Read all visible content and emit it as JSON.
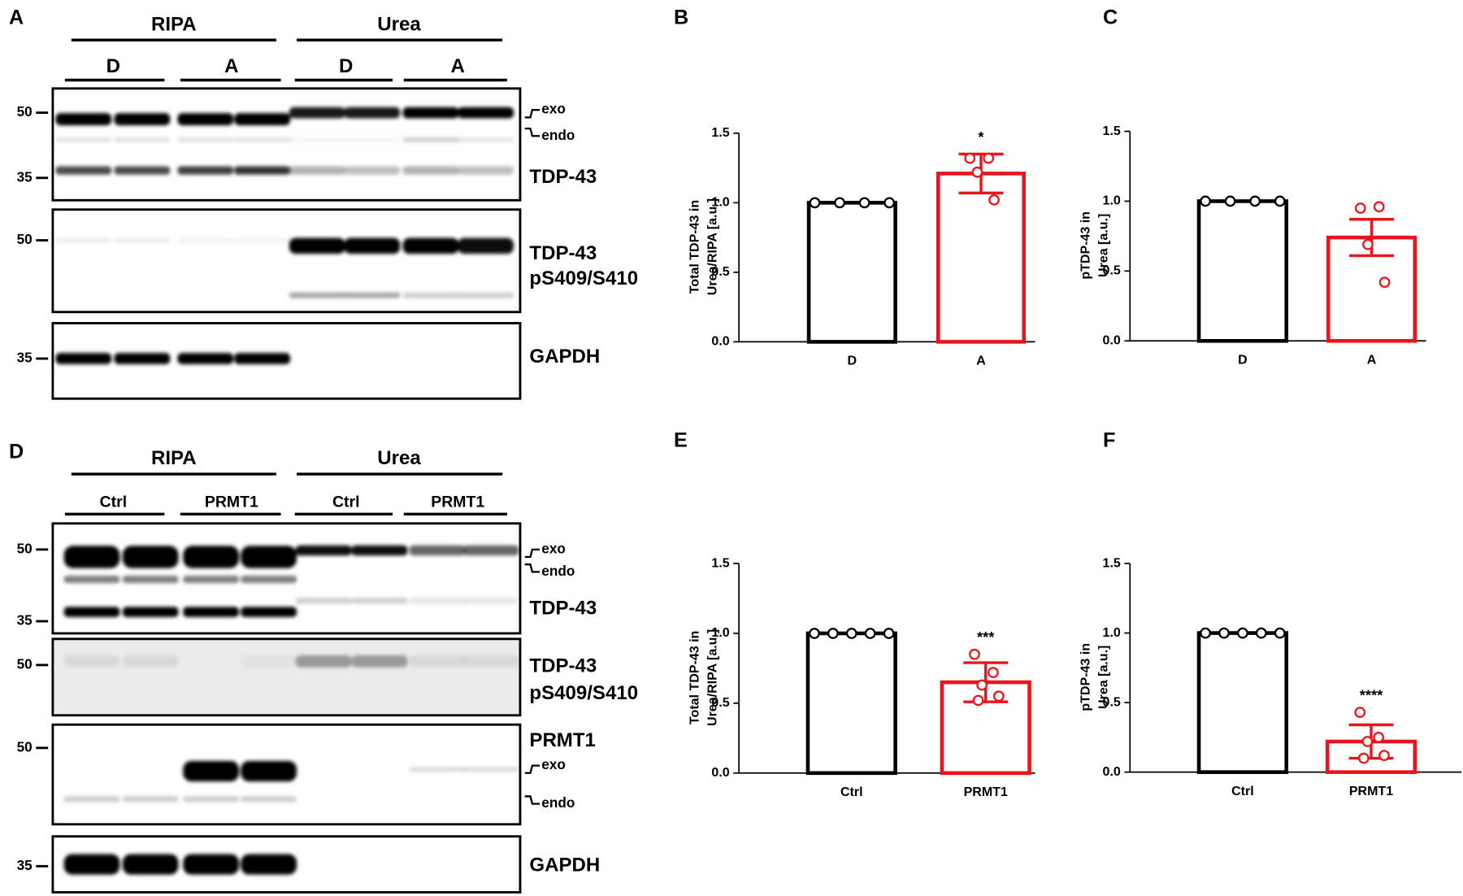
{
  "blots": [
    {
      "panel": "A",
      "fractions": [
        "RIPA",
        "Urea"
      ],
      "conditions": [
        "D",
        "A",
        "D",
        "A"
      ],
      "rows": [
        {
          "markers": [
            50,
            35
          ],
          "annotations": [
            "exo",
            "endo"
          ],
          "labels": [
            "TDP-43"
          ]
        },
        {
          "markers": [
            50
          ],
          "labels": [
            "TDP-43",
            "pS409/S410"
          ]
        },
        {
          "markers": [
            35
          ],
          "labels": [
            "GAPDH"
          ]
        }
      ]
    },
    {
      "panel": "D",
      "fractions": [
        "RIPA",
        "Urea"
      ],
      "conditions": [
        "Ctrl",
        "PRMT1",
        "Ctrl",
        "PRMT1"
      ],
      "rows": [
        {
          "markers": [
            50,
            35
          ],
          "annotations": [
            "exo",
            "endo"
          ],
          "labels": [
            "TDP-43"
          ]
        },
        {
          "markers": [
            50
          ],
          "labels": [
            "TDP-43",
            "pS409/S410"
          ]
        },
        {
          "markers": [
            50
          ],
          "annotations": [
            "exo",
            "endo"
          ],
          "labels": [
            "PRMT1"
          ]
        },
        {
          "markers": [
            35
          ],
          "labels": [
            "GAPDH"
          ]
        }
      ]
    }
  ],
  "chart_data": [
    {
      "type": "bar",
      "panel": "B",
      "ylabel": [
        "Total TDP-43 in",
        "Urea/RIPA [a.u.]"
      ],
      "categories": [
        "D",
        "A"
      ],
      "values": [
        1.0,
        1.21
      ],
      "errors": [
        0,
        0.14
      ],
      "points": [
        [
          1,
          1,
          1,
          1
        ],
        [
          1.32,
          1.32,
          1.22,
          1.02
        ]
      ],
      "significance": [
        null,
        "*"
      ],
      "colors": [
        "#000000",
        "#e8161b"
      ],
      "ylim": [
        0,
        1.5
      ],
      "yticks": [
        {
          "value": 0,
          "label": "0.0"
        },
        0.5,
        {
          "value": 1,
          "label": "1.0"
        },
        1.5
      ]
    },
    {
      "type": "bar",
      "panel": "C",
      "ylabel": [
        "pTDP-43 in",
        "Urea [a.u.]"
      ],
      "categories": [
        "D",
        "A"
      ],
      "values": [
        1.0,
        0.74
      ],
      "errors": [
        0,
        0.13
      ],
      "points": [
        [
          1,
          1,
          1,
          1
        ],
        [
          0.95,
          0.96,
          0.69,
          0.42
        ]
      ],
      "colors": [
        "#000000",
        "#e8161b"
      ],
      "ylim": [
        0,
        1.5
      ],
      "yticks": [
        {
          "value": 0,
          "label": "0.0"
        },
        0.5,
        {
          "value": 1,
          "label": "1.0"
        },
        1.5
      ]
    },
    {
      "type": "bar",
      "panel": "E",
      "ylabel": [
        "Total TDP-43 in",
        "Urea/RIPA [a.u.]"
      ],
      "categories": [
        "Ctrl",
        "PRMT1"
      ],
      "values": [
        1.0,
        0.65
      ],
      "errors": [
        0,
        0.14
      ],
      "points": [
        [
          1,
          1,
          1,
          1,
          1
        ],
        [
          0.85,
          0.72,
          0.63,
          0.55,
          0.52
        ]
      ],
      "significance": [
        null,
        "***"
      ],
      "colors": [
        "#000000",
        "#e8161b"
      ],
      "ylim": [
        0,
        1.5
      ],
      "yticks": [
        {
          "value": 0,
          "label": "0.0"
        },
        0.5,
        {
          "value": 1,
          "label": "1.0"
        },
        1.5
      ]
    },
    {
      "type": "bar",
      "panel": "F",
      "ylabel": [
        "pTDP-43 in",
        "Urea [a.u.]"
      ],
      "categories": [
        "Ctrl",
        "PRMT1"
      ],
      "values": [
        1.0,
        0.22
      ],
      "errors": [
        0,
        0.12
      ],
      "points": [
        [
          1,
          1,
          1,
          1,
          1
        ],
        [
          0.43,
          0.25,
          0.22,
          0.12,
          0.1
        ]
      ],
      "significance": [
        null,
        "****"
      ],
      "colors": [
        "#000000",
        "#e8161b"
      ],
      "ylim": [
        0,
        1.5
      ],
      "yticks": [
        {
          "value": 0,
          "label": "0.0"
        },
        0.5,
        {
          "value": 1,
          "label": "1.0"
        },
        1.5
      ]
    }
  ]
}
